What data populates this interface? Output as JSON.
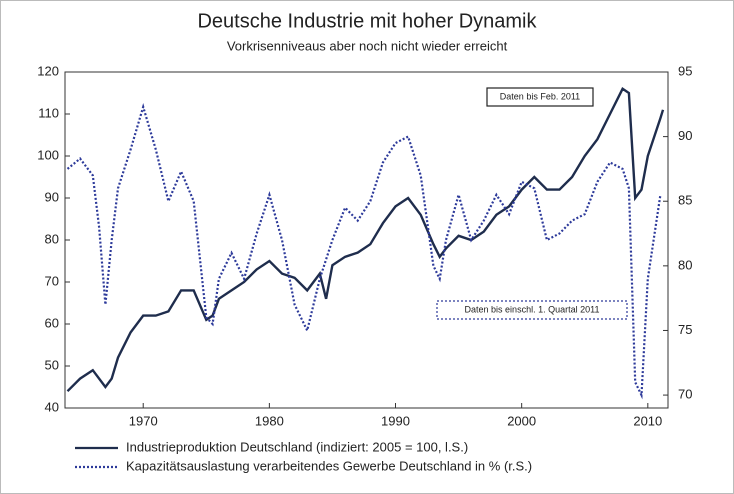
{
  "chart_data": {
    "type": "line",
    "title": "Deutsche Industrie mit hoher Dynamik",
    "subtitle": "Vorkrisenniveaus aber noch nicht wieder erreicht",
    "xlim": [
      1963.8,
      2011.6
    ],
    "xticks": [
      1970,
      1980,
      1990,
      2000,
      2010
    ],
    "ylim": [
      40,
      120
    ],
    "yticks": [
      40,
      50,
      60,
      70,
      80,
      90,
      100,
      110,
      120
    ],
    "y2lim": [
      69,
      95
    ],
    "y2ticks": [
      70,
      75,
      80,
      85,
      90,
      95
    ],
    "annotations": [
      "Daten bis Feb. 2011",
      "Daten bis einschl. 1. Quartal 2011"
    ],
    "legend": "bottom",
    "series": [
      {
        "name": "Industrieproduktion Deutschland (indiziert: 2005 = 100, l.S.)",
        "color": "#1f2d4d",
        "line_style": "solid",
        "x": [
          1964,
          1965,
          1966,
          1967,
          1967.5,
          1968,
          1969,
          1970,
          1971,
          1972,
          1973,
          1974,
          1975,
          1975.5,
          1976,
          1977,
          1978,
          1979,
          1980,
          1981,
          1982,
          1983,
          1984,
          1984.5,
          1985,
          1986,
          1987,
          1988,
          1989,
          1990,
          1991,
          1992,
          1993,
          1993.5,
          1994,
          1995,
          1996,
          1997,
          1998,
          1999,
          2000,
          2001,
          2002,
          2003,
          2004,
          2005,
          2006,
          2007,
          2008,
          2008.5,
          2009,
          2009.5,
          2010,
          2011,
          2011.2
        ],
        "values": [
          44,
          47,
          49,
          45,
          47,
          52,
          58,
          62,
          62,
          63,
          68,
          68,
          61,
          62,
          66,
          68,
          70,
          73,
          75,
          72,
          71,
          68,
          72,
          66,
          74,
          76,
          77,
          79,
          84,
          88,
          90,
          86,
          79,
          76,
          78,
          81,
          80,
          82,
          86,
          88,
          92,
          95,
          92,
          92,
          95,
          100,
          104,
          110,
          116,
          115,
          90,
          92,
          100,
          109,
          111
        ]
      },
      {
        "name": "Kapazitätsauslastung verarbeitendes Gewerbe Deutschland in % (r.S.)",
        "color": "#2d3a9a",
        "line_style": "dotted",
        "axis": "y2",
        "x": [
          1964,
          1965,
          1966,
          1966.5,
          1967,
          1967.5,
          1968,
          1969,
          1970,
          1971,
          1972,
          1973,
          1974,
          1975,
          1975.5,
          1976,
          1977,
          1978,
          1979,
          1980,
          1981,
          1982,
          1983,
          1984,
          1985,
          1986,
          1987,
          1988,
          1989,
          1990,
          1991,
          1992,
          1993,
          1993.5,
          1994,
          1995,
          1996,
          1997,
          1998,
          1999,
          2000,
          2001,
          2002,
          2003,
          2004,
          2005,
          2006,
          2007,
          2008,
          2008.5,
          2009,
          2009.5,
          2010,
          2011
        ],
        "values": [
          87.5,
          88.3,
          87,
          83,
          77,
          82,
          86,
          89,
          92.3,
          89,
          85,
          87.3,
          85,
          76,
          75.5,
          79,
          81,
          79,
          82.5,
          85.5,
          82,
          77,
          75,
          79,
          82,
          84.5,
          83.5,
          85,
          88,
          89.5,
          90,
          87,
          80,
          79,
          82,
          85.5,
          82,
          83.5,
          85.5,
          84,
          86.5,
          86,
          82,
          82.5,
          83.5,
          84,
          86.5,
          88,
          87.5,
          86,
          71,
          70,
          79,
          85.5
        ]
      }
    ]
  }
}
